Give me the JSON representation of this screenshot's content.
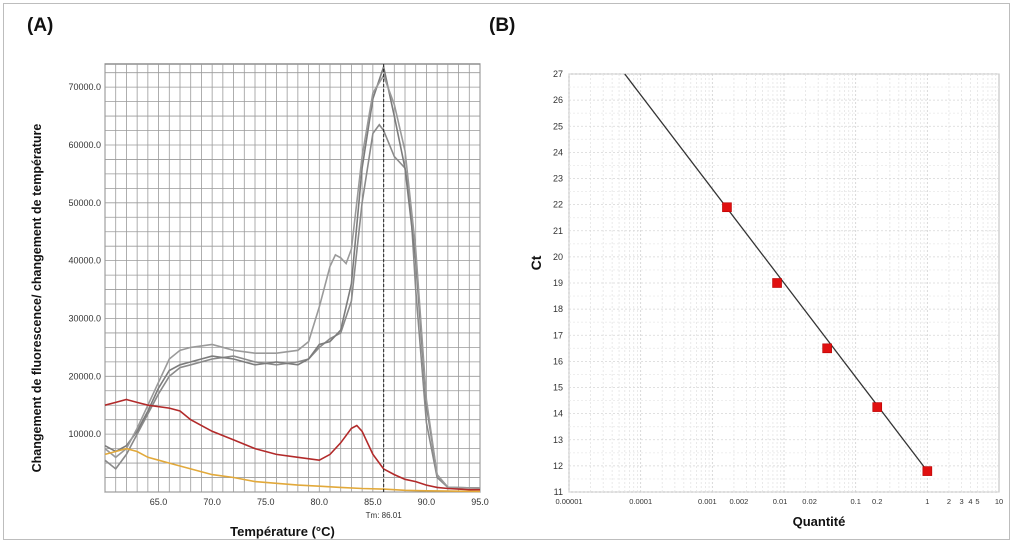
{
  "panels": {
    "a_label": "(A)",
    "b_label": "(B)"
  },
  "chart_data": [
    {
      "type": "line",
      "panel": "A",
      "title": "",
      "xlabel": "Température (°C)",
      "ylabel": "Changement de fluorescence/ changement de température",
      "xlim": [
        60.0,
        95.0
      ],
      "ylim": [
        0,
        74000
      ],
      "x_ticks": [
        65.0,
        70.0,
        75.0,
        80.0,
        85.0,
        90.0,
        95.0
      ],
      "x_tick_labels": [
        "65.0",
        "70.0",
        "75.0",
        "80.0",
        "85.0",
        "90.0",
        "95.0"
      ],
      "y_ticks": [
        10000,
        20000,
        30000,
        40000,
        50000,
        60000,
        70000
      ],
      "y_tick_labels": [
        "10000.0",
        "20000.0",
        "30000.0",
        "40000.0",
        "50000.0",
        "60000.0",
        "70000.0"
      ],
      "grid": true,
      "tm_marker": {
        "x": 86.01,
        "label": "Tm: 86.01"
      },
      "series": [
        {
          "color": "#8a8a8a",
          "points": [
            [
              60,
              5500
            ],
            [
              61,
              4000
            ],
            [
              62,
              6500
            ],
            [
              63,
              10000
            ],
            [
              64,
              13500
            ],
            [
              65,
              17000
            ],
            [
              66,
              20000
            ],
            [
              67,
              21500
            ],
            [
              68,
              22000
            ],
            [
              70,
              23000
            ],
            [
              72,
              23500
            ],
            [
              74,
              22500
            ],
            [
              76,
              22000
            ],
            [
              78,
              22500
            ],
            [
              79,
              23000
            ],
            [
              80,
              25000
            ],
            [
              81,
              26500
            ],
            [
              82,
              27500
            ],
            [
              83,
              33000
            ],
            [
              84,
              50000
            ],
            [
              85,
              62000
            ],
            [
              85.6,
              63500
            ],
            [
              86,
              62500
            ],
            [
              87,
              58000
            ],
            [
              88,
              56000
            ],
            [
              88.5,
              50000
            ],
            [
              89,
              35000
            ],
            [
              90,
              12000
            ],
            [
              91,
              2500
            ],
            [
              92,
              800
            ],
            [
              95,
              700
            ]
          ]
        },
        {
          "color": "#7c7c7c",
          "points": [
            [
              60,
              8000
            ],
            [
              61,
              7000
            ],
            [
              62,
              8000
            ],
            [
              63,
              10500
            ],
            [
              64,
              14000
            ],
            [
              65,
              18000
            ],
            [
              66,
              21000
            ],
            [
              67,
              22000
            ],
            [
              68,
              22500
            ],
            [
              70,
              23500
            ],
            [
              72,
              23000
            ],
            [
              74,
              22000
            ],
            [
              76,
              22500
            ],
            [
              78,
              22000
            ],
            [
              79,
              23000
            ],
            [
              80,
              25500
            ],
            [
              81,
              26000
            ],
            [
              82,
              28000
            ],
            [
              83,
              36000
            ],
            [
              84,
              56000
            ],
            [
              85,
              68000
            ],
            [
              86,
              73500
            ],
            [
              87,
              65000
            ],
            [
              88,
              56000
            ],
            [
              89,
              40000
            ],
            [
              90,
              15000
            ],
            [
              91,
              3000
            ],
            [
              92,
              800
            ],
            [
              95,
              700
            ]
          ]
        },
        {
          "color": "#9a9a9a",
          "points": [
            [
              60,
              7500
            ],
            [
              61,
              6000
            ],
            [
              62,
              7500
            ],
            [
              63,
              11000
            ],
            [
              64,
              15000
            ],
            [
              65,
              19000
            ],
            [
              66,
              23000
            ],
            [
              67,
              24500
            ],
            [
              68,
              25000
            ],
            [
              70,
              25500
            ],
            [
              72,
              24500
            ],
            [
              74,
              24000
            ],
            [
              76,
              24000
            ],
            [
              78,
              24500
            ],
            [
              79,
              26000
            ],
            [
              80,
              32000
            ],
            [
              81,
              39000
            ],
            [
              81.5,
              41000
            ],
            [
              82,
              40500
            ],
            [
              82.5,
              39500
            ],
            [
              83,
              42000
            ],
            [
              84,
              58000
            ],
            [
              85,
              69000
            ],
            [
              86,
              72000
            ],
            [
              87,
              67000
            ],
            [
              88,
              59000
            ],
            [
              89,
              42000
            ],
            [
              90,
              16000
            ],
            [
              91,
              3000
            ],
            [
              92,
              800
            ],
            [
              95,
              700
            ]
          ]
        },
        {
          "color": "#b22a2a",
          "points": [
            [
              60,
              15000
            ],
            [
              61,
              15500
            ],
            [
              62,
              16000
            ],
            [
              63,
              15500
            ],
            [
              64,
              15000
            ],
            [
              66,
              14500
            ],
            [
              67,
              14000
            ],
            [
              68,
              12500
            ],
            [
              70,
              10500
            ],
            [
              72,
              9000
            ],
            [
              74,
              7500
            ],
            [
              76,
              6500
            ],
            [
              78,
              6000
            ],
            [
              80,
              5500
            ],
            [
              81,
              6500
            ],
            [
              82,
              8500
            ],
            [
              83,
              11000
            ],
            [
              83.5,
              11500
            ],
            [
              84,
              10500
            ],
            [
              85,
              6500
            ],
            [
              86,
              4000
            ],
            [
              87,
              3000
            ],
            [
              88,
              2200
            ],
            [
              89,
              1800
            ],
            [
              90,
              1200
            ],
            [
              91,
              800
            ],
            [
              92,
              600
            ],
            [
              94,
              400
            ],
            [
              95,
              400
            ]
          ]
        },
        {
          "color": "#e2a93a",
          "points": [
            [
              60,
              6500
            ],
            [
              61,
              7000
            ],
            [
              62,
              7500
            ],
            [
              63,
              7000
            ],
            [
              64,
              6000
            ],
            [
              65,
              5500
            ],
            [
              66,
              5000
            ],
            [
              67,
              4500
            ],
            [
              68,
              4000
            ],
            [
              70,
              3000
            ],
            [
              72,
              2500
            ],
            [
              74,
              1800
            ],
            [
              76,
              1500
            ],
            [
              78,
              1200
            ],
            [
              80,
              1000
            ],
            [
              82,
              800
            ],
            [
              84,
              600
            ],
            [
              86,
              500
            ],
            [
              88,
              300
            ],
            [
              90,
              200
            ],
            [
              92,
              150
            ],
            [
              95,
              100
            ]
          ]
        }
      ]
    },
    {
      "type": "scatter",
      "panel": "B",
      "title": "",
      "xlabel": "Quantité",
      "ylabel": "Ct",
      "x_scale": "log",
      "xlim": [
        1e-05,
        10
      ],
      "ylim": [
        11,
        27
      ],
      "x_ticks": [
        1e-05,
        0.0001,
        0.001,
        0.002,
        0.01,
        0.02,
        0.1,
        0.2,
        1,
        2,
        3,
        4,
        5,
        10
      ],
      "x_tick_labels": [
        "0.00001",
        "0.0001",
        "0.001",
        "0.002",
        "0.01",
        "0.02",
        "0.1",
        "0.2",
        "1",
        "2",
        "3",
        "4",
        "5",
        "10"
      ],
      "y_ticks": [
        11,
        12,
        13,
        14,
        15,
        16,
        17,
        18,
        19,
        20,
        21,
        22,
        23,
        24,
        25,
        26,
        27
      ],
      "grid": true,
      "points": [
        {
          "x": 0.0016,
          "y": 21.9
        },
        {
          "x": 0.008,
          "y": 19.0
        },
        {
          "x": 0.04,
          "y": 16.5
        },
        {
          "x": 0.2,
          "y": 14.25
        },
        {
          "x": 1,
          "y": 11.8
        }
      ],
      "fit_line": {
        "x": [
          6e-05,
          1
        ],
        "y": [
          27,
          11.8
        ]
      },
      "colors": {
        "points": "#e01010",
        "line": "#333333"
      }
    }
  ]
}
